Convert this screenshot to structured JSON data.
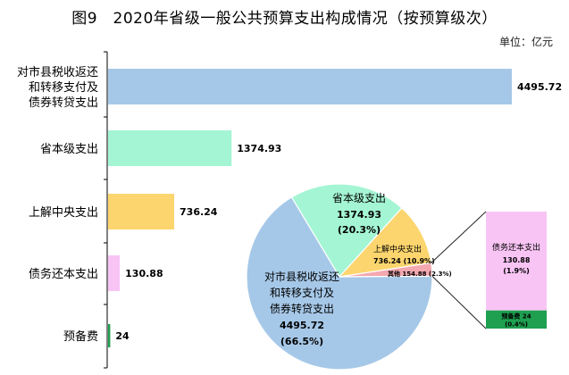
{
  "title": "图9　2020年省级一般公共预算支出构成情况（按预算级次）",
  "unit": "单位：亿元",
  "chart_data": [
    {
      "type": "bar",
      "orientation": "horizontal",
      "categories": [
        [
          "对市县税收返还",
          "和转移支付及",
          "债券转贷支出"
        ],
        [
          "省本级支出"
        ],
        [
          "上解中央支出"
        ],
        [
          "债务还本支出"
        ],
        [
          "预备费"
        ]
      ],
      "values": [
        4495.72,
        1374.93,
        736.24,
        130.88,
        24
      ],
      "value_labels": [
        "4495.72",
        "1374.93",
        "736.24",
        "130.88",
        "24"
      ],
      "colors": [
        "#a6c8e8",
        "#a4f5d4",
        "#fcd56e",
        "#f8c4f4",
        "#1ea050"
      ],
      "xlim": [
        0,
        4495.72
      ]
    },
    {
      "type": "pie",
      "slices": [
        {
          "lines": [
            "省本级支出",
            "1374.93",
            "(20.3%)"
          ],
          "value": 1374.93,
          "pct": 20.3,
          "color": "#a4f5d4"
        },
        {
          "lines": [
            "上解中央支出",
            "736.24 (10.9%)"
          ],
          "value": 736.24,
          "pct": 10.9,
          "color": "#fcd56e"
        },
        {
          "lines": [
            "其他 154.88 (2.3%)"
          ],
          "value": 154.88,
          "pct": 2.3,
          "color": "#f4a8b0"
        },
        {
          "lines": [
            "对市县税收返还",
            "和转移支付及",
            "债券转贷支出",
            "4495.72",
            "(66.5%)"
          ],
          "value": 4495.72,
          "pct": 66.5,
          "color": "#a6c8e8"
        }
      ],
      "breakout": {
        "of": "其他",
        "segments": [
          {
            "lines": [
              "债务还本支出",
              "130.88",
              "(1.9%)"
            ],
            "value": 130.88,
            "color": "#f8c4f4"
          },
          {
            "lines": [
              "预备费 24",
              "(0.4%)"
            ],
            "value": 24,
            "color": "#1ea050"
          }
        ]
      }
    }
  ]
}
